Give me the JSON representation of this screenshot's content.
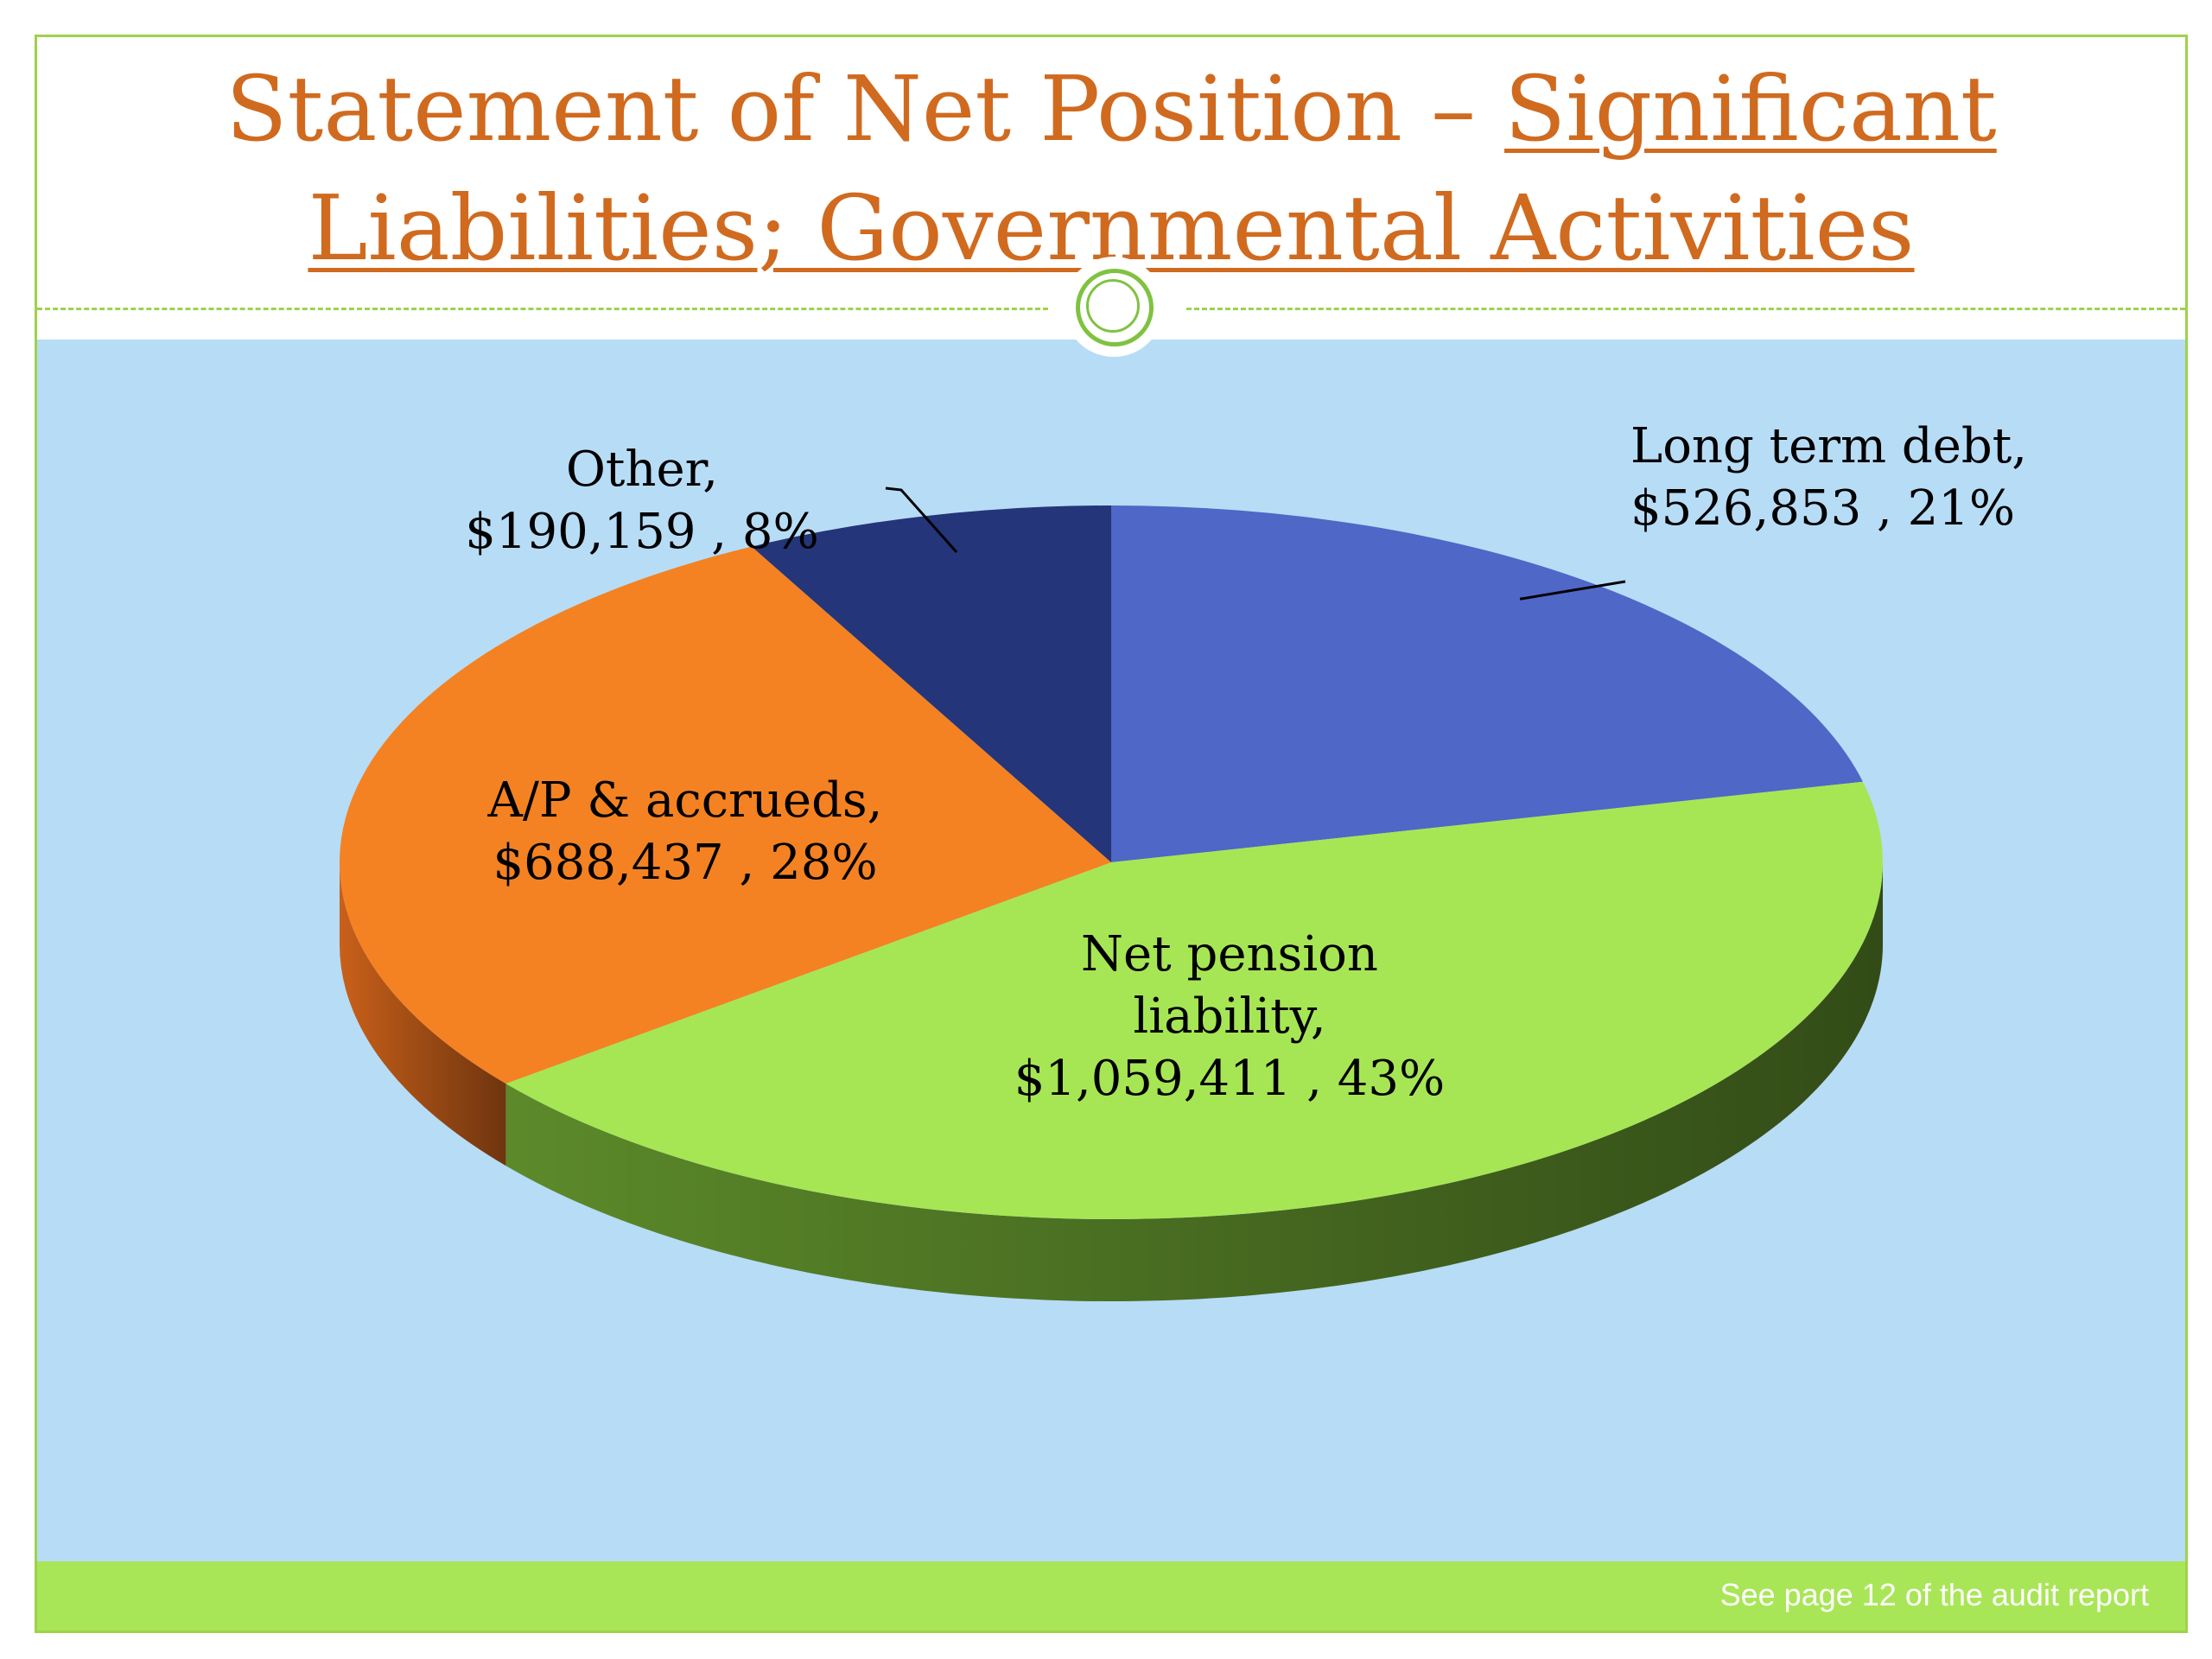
{
  "slide": {
    "title_part1": "Statement of Net Position – ",
    "title_underlined_1": "Significant",
    "title_underlined_2": "Liabilities; Governmental Activities",
    "footer_note": "See page 12 of the audit report"
  },
  "chart_data": {
    "type": "pie",
    "title": "Statement of Net Position – Significant Liabilities; Governmental Activities",
    "style": "3d",
    "legend": "none",
    "slices": [
      {
        "name": "Long term debt",
        "value": 526853,
        "percent": 21,
        "value_label": "$526,853",
        "percent_label": "21%",
        "color": "#4f67c6",
        "side_color": "#2f4196"
      },
      {
        "name": "Net pension liability",
        "value": 1059411,
        "percent": 43,
        "value_label": "$1,059,411",
        "percent_label": "43%",
        "color": "#a6e655",
        "side_color": "#5c8a2a"
      },
      {
        "name": "A/P & accrueds",
        "value": 688437,
        "percent": 28,
        "value_label": "$688,437",
        "percent_label": "28%",
        "color": "#f48222",
        "side_color": "#c9601a"
      },
      {
        "name": "Other",
        "value": 190159,
        "percent": 8,
        "value_label": "$190,159",
        "percent_label": "8%",
        "color": "#253579",
        "side_color": "#18245a"
      }
    ],
    "labels": [
      {
        "slice": 0,
        "lines": [
          "Long term debt,",
          "$526,853 , 21%"
        ]
      },
      {
        "slice": 1,
        "lines": [
          "Net pension",
          "liability,",
          "$1,059,411 , 43%"
        ]
      },
      {
        "slice": 2,
        "lines": [
          "A/P & accrueds,",
          "$688,437 , 28%"
        ]
      },
      {
        "slice": 3,
        "lines": [
          "Other,",
          "$190,159 , 8%"
        ]
      }
    ],
    "colors": {
      "background": "#b7dcf6",
      "title": "#d06a1f",
      "frame": "#9ed24a",
      "footer": "#a9e657"
    }
  }
}
